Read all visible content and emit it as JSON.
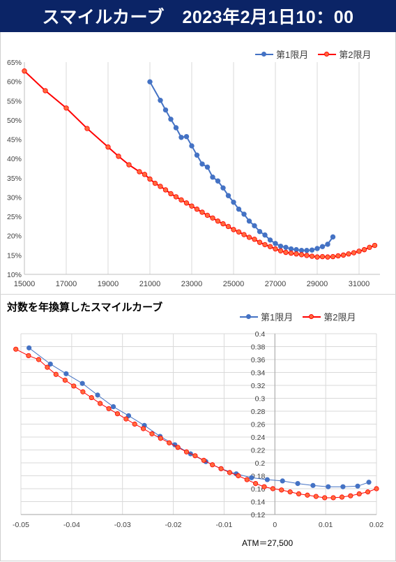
{
  "header": {
    "title": "スマイルカーブ　2023年2月1日10：00"
  },
  "colors": {
    "series1": "#4472c4",
    "series2": "#ff0000",
    "series2_fill": "#ff6a3d",
    "banner": "#0b2466"
  },
  "chart_data": [
    {
      "type": "line",
      "title": "",
      "xlim": [
        15000,
        32000
      ],
      "ylim": [
        0.1,
        0.65
      ],
      "x_ticks": [
        15000,
        17000,
        19000,
        21000,
        23000,
        25000,
        27000,
        29000,
        31000
      ],
      "x_tick_labels": [
        "15000",
        "17000",
        "19000",
        "21000",
        "23000",
        "25000",
        "27000",
        "29000",
        "31000"
      ],
      "y_ticks": [
        0.1,
        0.15,
        0.2,
        0.25,
        0.3,
        0.35,
        0.4,
        0.45,
        0.5,
        0.55,
        0.6,
        0.65
      ],
      "y_tick_labels": [
        "10%",
        "15%",
        "20%",
        "25%",
        "30%",
        "35%",
        "40%",
        "45%",
        "50%",
        "55%",
        "60%",
        "65%"
      ],
      "grid": "vertical",
      "legend_position": "top-right",
      "series": [
        {
          "name": "第1限月",
          "x": [
            21000,
            21500,
            21750,
            22000,
            22250,
            22500,
            22750,
            23000,
            23250,
            23500,
            23750,
            24000,
            24250,
            24500,
            24750,
            25000,
            25250,
            25500,
            25750,
            26000,
            26250,
            26500,
            26750,
            27000,
            27250,
            27500,
            27750,
            28000,
            28250,
            28500,
            28750,
            29000,
            29250,
            29500,
            29750
          ],
          "y": [
            0.599,
            0.551,
            0.526,
            0.502,
            0.48,
            0.455,
            0.457,
            0.433,
            0.409,
            0.386,
            0.378,
            0.352,
            0.342,
            0.324,
            0.304,
            0.287,
            0.269,
            0.256,
            0.238,
            0.226,
            0.211,
            0.202,
            0.189,
            0.18,
            0.173,
            0.17,
            0.166,
            0.164,
            0.162,
            0.162,
            0.163,
            0.167,
            0.172,
            0.178,
            0.197
          ]
        },
        {
          "name": "第2限月",
          "x": [
            15000,
            16000,
            17000,
            18000,
            19000,
            19500,
            20000,
            20500,
            20750,
            21000,
            21250,
            21500,
            21750,
            22000,
            22250,
            22500,
            22750,
            23000,
            23250,
            23500,
            23750,
            24000,
            24250,
            24500,
            24750,
            25000,
            25250,
            25500,
            25750,
            26000,
            26250,
            26500,
            26750,
            27000,
            27250,
            27500,
            27750,
            28000,
            28250,
            28500,
            28750,
            29000,
            29250,
            29500,
            29750,
            30000,
            30250,
            30500,
            30750,
            31000,
            31250,
            31500,
            31750
          ],
          "y": [
            0.627,
            0.576,
            0.531,
            0.478,
            0.43,
            0.406,
            0.384,
            0.366,
            0.359,
            0.347,
            0.336,
            0.328,
            0.319,
            0.309,
            0.301,
            0.293,
            0.285,
            0.277,
            0.269,
            0.261,
            0.253,
            0.246,
            0.238,
            0.231,
            0.224,
            0.216,
            0.21,
            0.203,
            0.196,
            0.191,
            0.183,
            0.177,
            0.172,
            0.166,
            0.161,
            0.157,
            0.155,
            0.153,
            0.151,
            0.149,
            0.147,
            0.145,
            0.146,
            0.145,
            0.146,
            0.148,
            0.15,
            0.153,
            0.156,
            0.16,
            0.164,
            0.17,
            0.175
          ]
        }
      ]
    },
    {
      "type": "line",
      "title": "対数を年換算したスマイルカーブ",
      "xlim": [
        -0.05,
        0.02
      ],
      "ylim": [
        0.12,
        0.4
      ],
      "x_ticks": [
        -0.05,
        -0.04,
        -0.03,
        -0.02,
        -0.01,
        0,
        0.01,
        0.02
      ],
      "x_tick_labels": [
        "-0.05",
        "-0.04",
        "-0.03",
        "-0.02",
        "-0.01",
        "0",
        "0.01",
        "0.02"
      ],
      "y_ticks": [
        0.12,
        0.14,
        0.16,
        0.18,
        0.2,
        0.22,
        0.24,
        0.26,
        0.28,
        0.3,
        0.32,
        0.34,
        0.36,
        0.38,
        0.4
      ],
      "y_tick_labels": [
        "0.12",
        "0.14",
        "0.16",
        "0.18",
        "0.2",
        "0.22",
        "0.24",
        "0.26",
        "0.28",
        "0.3",
        "0.32",
        "0.34",
        "0.36",
        "0.38",
        "0.4"
      ],
      "grid": "both",
      "legend_position": "top-right",
      "annotation": "ATM＝27,500",
      "series": [
        {
          "name": "第1限月",
          "x": [
            -0.0484,
            -0.0442,
            -0.0411,
            -0.0379,
            -0.0349,
            -0.0318,
            -0.0288,
            -0.0257,
            -0.0226,
            -0.0197,
            -0.0166,
            -0.0136,
            -0.0106,
            -0.0076,
            -0.0046,
            -0.0015,
            0.0015,
            0.0045,
            0.0075,
            0.0105,
            0.0134,
            0.0163,
            0.0185
          ],
          "y": [
            0.378,
            0.353,
            0.338,
            0.323,
            0.305,
            0.287,
            0.273,
            0.258,
            0.241,
            0.228,
            0.214,
            0.202,
            0.191,
            0.183,
            0.177,
            0.174,
            0.172,
            0.168,
            0.165,
            0.163,
            0.163,
            0.164,
            0.17
          ]
        },
        {
          "name": "第2限月",
          "x": [
            -0.051,
            -0.0485,
            -0.0465,
            -0.0448,
            -0.0431,
            -0.0413,
            -0.0396,
            -0.0378,
            -0.0361,
            -0.0344,
            -0.0327,
            -0.031,
            -0.0293,
            -0.0276,
            -0.0259,
            -0.0242,
            -0.0225,
            -0.0208,
            -0.0191,
            -0.0174,
            -0.0157,
            -0.014,
            -0.0123,
            -0.0106,
            -0.0089,
            -0.0072,
            -0.0055,
            -0.0038,
            -0.0021,
            -0.0004,
            0.0013,
            0.003,
            0.0047,
            0.0064,
            0.0081,
            0.0098,
            0.0115,
            0.0132,
            0.0149,
            0.0166,
            0.0183,
            0.02
          ],
          "y": [
            0.376,
            0.366,
            0.36,
            0.348,
            0.337,
            0.328,
            0.319,
            0.31,
            0.301,
            0.292,
            0.284,
            0.276,
            0.268,
            0.26,
            0.253,
            0.245,
            0.238,
            0.231,
            0.224,
            0.217,
            0.211,
            0.204,
            0.197,
            0.191,
            0.185,
            0.18,
            0.174,
            0.168,
            0.163,
            0.16,
            0.158,
            0.155,
            0.152,
            0.15,
            0.148,
            0.146,
            0.146,
            0.147,
            0.149,
            0.152,
            0.155,
            0.16
          ]
        }
      ]
    }
  ]
}
